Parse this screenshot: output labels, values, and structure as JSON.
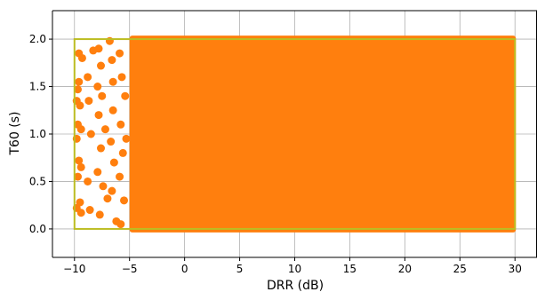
{
  "chart_data": {
    "type": "scatter",
    "title": "",
    "xlabel": "DRR (dB)",
    "ylabel": "T60 (s)",
    "xlim": [
      -12.0,
      32.0
    ],
    "ylim": [
      -0.3,
      2.3
    ],
    "xticks": [
      -10,
      -5,
      0,
      5,
      10,
      15,
      20,
      25,
      30
    ],
    "yticks": [
      0.0,
      0.5,
      1.0,
      1.5,
      2.0
    ],
    "xtick_labels": [
      "−10",
      "−5",
      "0",
      "5",
      "10",
      "15",
      "20",
      "25",
      "30"
    ],
    "ytick_labels": [
      "0.0",
      "0.5",
      "1.0",
      "1.5",
      "2.0"
    ],
    "grid": true,
    "series": [
      {
        "marker_color": "#ff7f0e",
        "dense_region": {
          "x": [
            -5.0,
            30.0
          ],
          "y": [
            0.0,
            2.0
          ]
        },
        "sparse_points": [
          [
            -9.6,
            1.85
          ],
          [
            -9.3,
            1.8
          ],
          [
            -9.6,
            1.55
          ],
          [
            -9.7,
            1.47
          ],
          [
            -9.8,
            1.35
          ],
          [
            -9.5,
            1.3
          ],
          [
            -9.7,
            1.1
          ],
          [
            -9.4,
            1.05
          ],
          [
            -9.8,
            0.95
          ],
          [
            -9.6,
            0.72
          ],
          [
            -9.4,
            0.65
          ],
          [
            -9.7,
            0.55
          ],
          [
            -9.5,
            0.28
          ],
          [
            -9.8,
            0.22
          ],
          [
            -9.4,
            0.17
          ],
          [
            -8.8,
            1.6
          ],
          [
            -8.7,
            1.35
          ],
          [
            -8.5,
            1.0
          ],
          [
            -8.8,
            0.5
          ],
          [
            -8.6,
            0.2
          ],
          [
            -8.3,
            1.88
          ],
          [
            -7.8,
            1.9
          ],
          [
            -7.6,
            1.72
          ],
          [
            -7.9,
            1.5
          ],
          [
            -7.5,
            1.4
          ],
          [
            -7.8,
            1.2
          ],
          [
            -7.6,
            0.85
          ],
          [
            -7.9,
            0.6
          ],
          [
            -7.4,
            0.45
          ],
          [
            -7.7,
            0.15
          ],
          [
            -7.2,
            1.05
          ],
          [
            -7.0,
            0.32
          ],
          [
            -6.8,
            1.98
          ],
          [
            -6.6,
            1.78
          ],
          [
            -6.5,
            1.25
          ],
          [
            -6.7,
            0.92
          ],
          [
            -6.4,
            0.7
          ],
          [
            -6.6,
            0.4
          ],
          [
            -6.2,
            0.08
          ],
          [
            -6.5,
            1.55
          ],
          [
            -5.9,
            1.85
          ],
          [
            -5.7,
            1.6
          ],
          [
            -5.8,
            1.1
          ],
          [
            -5.6,
            0.8
          ],
          [
            -5.9,
            0.55
          ],
          [
            -5.5,
            0.3
          ],
          [
            -5.8,
            0.05
          ],
          [
            -5.4,
            1.4
          ],
          [
            -5.3,
            0.95
          ]
        ]
      }
    ],
    "annotations": [
      {
        "type": "rectangle",
        "color": "#bcbd22",
        "x": [
          -10.0,
          30.0
        ],
        "y": [
          0.0,
          2.0
        ]
      }
    ]
  }
}
